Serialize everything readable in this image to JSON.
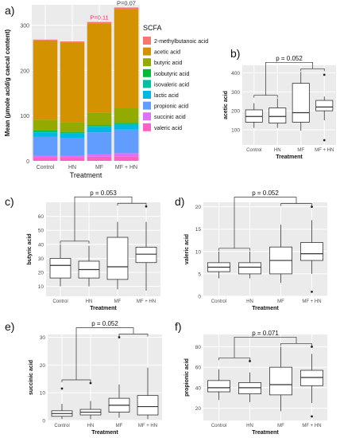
{
  "panel_labels": [
    "a)",
    "b)",
    "c)",
    "d)",
    "e)",
    "f)"
  ],
  "colors": {
    "panel_bg": "#ebebeb",
    "grid": "#ffffff",
    "box_fill": "#ffffff",
    "box_stroke": "#333333",
    "segments": {
      "valeric acid": "#ff61c3",
      "succinic acid": "#db72fb",
      "propionic acid": "#619cff",
      "lactic acid": "#00b9e3",
      "isovaleric acid": "#00c19f",
      "isobutyric acid": "#00ba38",
      "butyric acid": "#93aa00",
      "acetic acid": "#d39200",
      "2-methylbutanoic acid": "#f8766d"
    }
  },
  "chart_data": [
    {
      "panel": "a)",
      "type": "bar",
      "stacked": true,
      "categories": [
        "Control",
        "HN",
        "MF",
        "MF + HN"
      ],
      "xlabel": "Treatment",
      "ylabel": "Mean (µmole acid/g caecal content)",
      "ylim": [
        0,
        345
      ],
      "yticks": [
        0,
        100,
        200,
        300
      ],
      "legend_title": "SCFA",
      "legend_position": "right",
      "legend_entries": [
        "2-methylbutanoic acid",
        "acetic acid",
        "butyric acid",
        "isobutyric acid",
        "isovaleric acid",
        "lactic acid",
        "propionic acid",
        "succinic acid",
        "valeric acid"
      ],
      "stack_order_bottom_to_top": [
        "valeric acid",
        "succinic acid",
        "propionic acid",
        "lactic acid",
        "isovaleric acid",
        "isobutyric acid",
        "butyric acid",
        "acetic acid",
        "2-methylbutanoic acid"
      ],
      "series": [
        {
          "name": "valeric acid",
          "values": [
            7,
            7,
            9,
            10
          ]
        },
        {
          "name": "succinic acid",
          "values": [
            4,
            4,
            6,
            7
          ]
        },
        {
          "name": "propionic acid",
          "values": [
            42,
            40,
            48,
            52
          ]
        },
        {
          "name": "lactic acid",
          "values": [
            10,
            9,
            12,
            11
          ]
        },
        {
          "name": "isovaleric acid",
          "values": [
            2,
            2,
            2,
            2
          ]
        },
        {
          "name": "isobutyric acid",
          "values": [
            2,
            2,
            2,
            2
          ]
        },
        {
          "name": "butyric acid",
          "values": [
            24,
            22,
            28,
            33
          ]
        },
        {
          "name": "acetic acid",
          "values": [
            175,
            176,
            197,
            219
          ]
        },
        {
          "name": "2-methylbutanoic acid",
          "values": [
            2,
            2,
            3,
            3
          ]
        }
      ],
      "annotations": [
        {
          "category": "MF",
          "text": "P=0.11",
          "color": "#ff2a6d"
        },
        {
          "category": "MF + HN",
          "text": "P=0.07",
          "color": "#333333"
        }
      ]
    },
    {
      "panel": "b)",
      "type": "box",
      "categories": [
        "Control",
        "HN",
        "MF",
        "MF + HN"
      ],
      "xlabel": "Treatment",
      "ylabel": "acetic acid",
      "ylim": [
        20,
        440
      ],
      "yticks": [
        100,
        200,
        300,
        400
      ],
      "boxes": [
        {
          "min": 110,
          "q1": 140,
          "median": 170,
          "q3": 205,
          "max": 240,
          "outliers": []
        },
        {
          "min": 110,
          "q1": 135,
          "median": 170,
          "q3": 215,
          "max": 265,
          "outliers": []
        },
        {
          "min": 95,
          "q1": 140,
          "median": 190,
          "q3": 345,
          "max": 405,
          "outliers": []
        },
        {
          "min": 150,
          "q1": 200,
          "median": 220,
          "q3": 255,
          "max": 275,
          "outliers": [
            390,
            45
          ]
        }
      ],
      "comparison": {
        "text": "p = 0.052",
        "left_pair": [
          0,
          1
        ],
        "right_pair": [
          2,
          3
        ]
      }
    },
    {
      "panel": "c)",
      "type": "box",
      "categories": [
        "Control",
        "HN",
        "MF",
        "MF + HN"
      ],
      "xlabel": "Treatment",
      "ylabel": "butyric acid",
      "ylim": [
        3,
        70
      ],
      "yticks": [
        10,
        20,
        30,
        40,
        50,
        60
      ],
      "boxes": [
        {
          "min": 10,
          "q1": 16,
          "median": 25,
          "q3": 30,
          "max": 40,
          "outliers": []
        },
        {
          "min": 10,
          "q1": 16,
          "median": 22,
          "q3": 28,
          "max": 39,
          "outliers": []
        },
        {
          "min": 8,
          "q1": 15,
          "median": 24,
          "q3": 45,
          "max": 56,
          "outliers": []
        },
        {
          "min": 7,
          "q1": 27,
          "median": 33,
          "q3": 38,
          "max": 56,
          "outliers": [
            67
          ]
        }
      ],
      "comparison": {
        "text": "p = 0.053",
        "left_pair": [
          0,
          1
        ],
        "right_pair": [
          2,
          3
        ]
      }
    },
    {
      "panel": "d)",
      "type": "box",
      "categories": [
        "Control",
        "HN",
        "MF",
        "MF + HN"
      ],
      "xlabel": "Treatment",
      "ylabel": "valeric acid",
      "ylim": [
        0,
        21
      ],
      "yticks": [
        0,
        5,
        10,
        15,
        20
      ],
      "boxes": [
        {
          "min": 4,
          "q1": 5.5,
          "median": 6.5,
          "q3": 7.5,
          "max": 10,
          "outliers": []
        },
        {
          "min": 4,
          "q1": 5,
          "median": 6.5,
          "q3": 7.5,
          "max": 10,
          "outliers": []
        },
        {
          "min": 3,
          "q1": 5,
          "median": 8,
          "q3": 11,
          "max": 16,
          "outliers": []
        },
        {
          "min": 5,
          "q1": 8,
          "median": 9.5,
          "q3": 12,
          "max": 17,
          "outliers": [
            20,
            1
          ]
        }
      ],
      "comparison": {
        "text": "p = 0.052",
        "left_pair": [
          0,
          1
        ],
        "right_pair": [
          2,
          3
        ]
      }
    },
    {
      "panel": "e)",
      "type": "box",
      "categories": [
        "Control",
        "HN",
        "MF",
        "MF + HN"
      ],
      "xlabel": "Treatment",
      "ylabel": "succinic acid",
      "ylim": [
        0,
        31
      ],
      "yticks": [
        0,
        10,
        20,
        30
      ],
      "boxes": [
        {
          "min": 0.5,
          "q1": 1.5,
          "median": 2.5,
          "q3": 3.5,
          "max": 6,
          "outliers": [
            11.5
          ]
        },
        {
          "min": 0.5,
          "q1": 2,
          "median": 3,
          "q3": 4,
          "max": 7,
          "outliers": [
            13.5
          ]
        },
        {
          "min": 1,
          "q1": 3,
          "median": 5.5,
          "q3": 8,
          "max": 13,
          "outliers": [
            30
          ]
        },
        {
          "min": 0.5,
          "q1": 2,
          "median": 5,
          "q3": 9,
          "max": 19,
          "outliers": []
        }
      ],
      "comparison": {
        "text": "p = 0.052",
        "left_pair": [
          0,
          1
        ],
        "right_pair": [
          2,
          3
        ]
      }
    },
    {
      "panel": "f)",
      "type": "box",
      "categories": [
        "Control",
        "HN",
        "MF",
        "MF + HN"
      ],
      "xlabel": "Treatment",
      "ylabel": "propionic acid",
      "ylim": [
        8,
        92
      ],
      "yticks": [
        20,
        40,
        60,
        80
      ],
      "boxes": [
        {
          "min": 28,
          "q1": 36,
          "median": 40,
          "q3": 47,
          "max": 58,
          "outliers": []
        },
        {
          "min": 26,
          "q1": 34,
          "median": 40,
          "q3": 45,
          "max": 55,
          "outliers": [
            66
          ]
        },
        {
          "min": 17,
          "q1": 33,
          "median": 43,
          "q3": 60,
          "max": 80,
          "outliers": []
        },
        {
          "min": 25,
          "q1": 42,
          "median": 50,
          "q3": 57,
          "max": 73,
          "outliers": [
            80,
            12
          ]
        }
      ],
      "comparison": {
        "text": "p = 0.071",
        "left_pair": [
          0,
          1
        ],
        "right_pair": [
          2,
          3
        ]
      }
    }
  ]
}
